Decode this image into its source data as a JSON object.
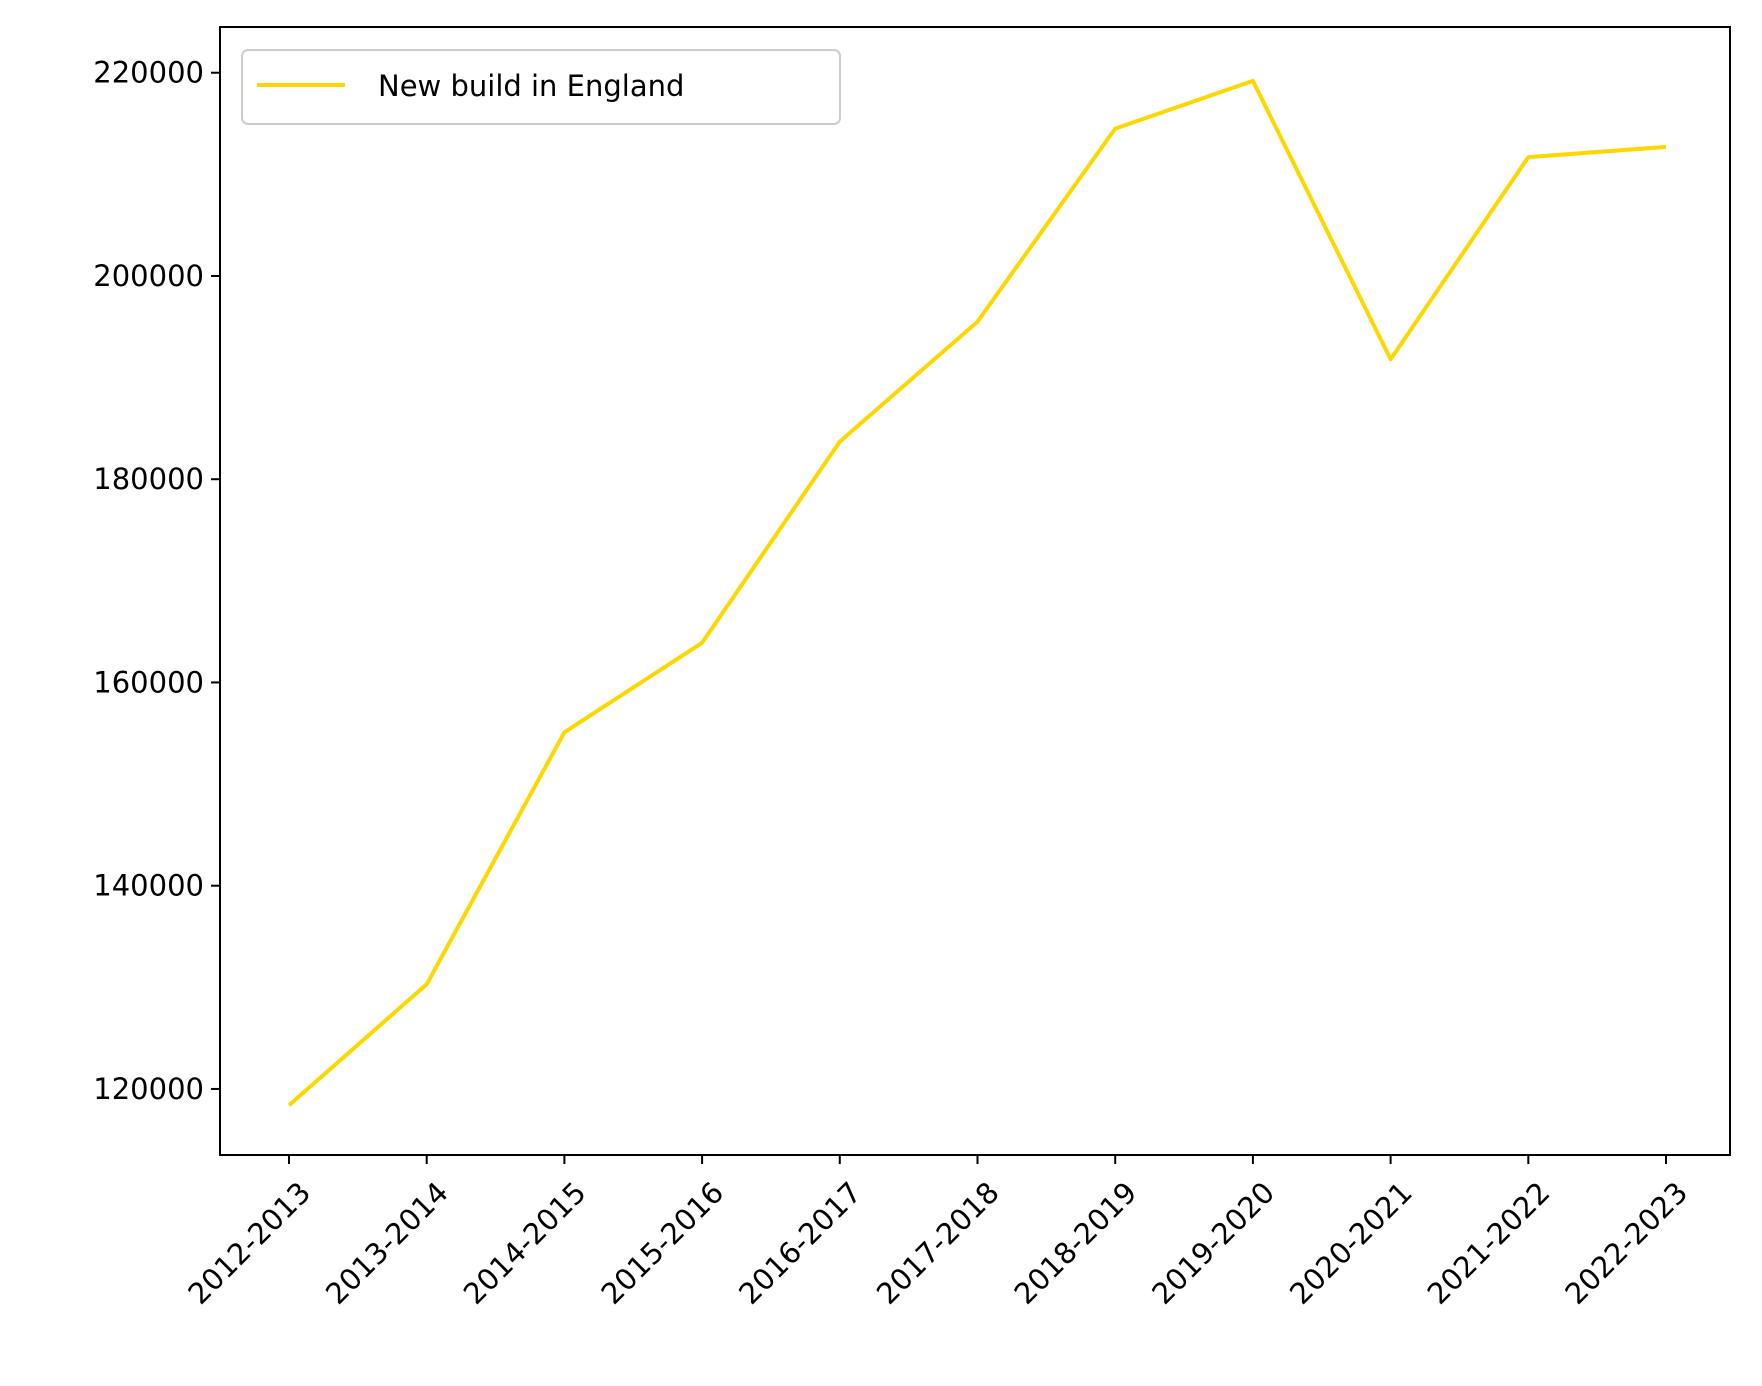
{
  "chart_data": {
    "type": "line",
    "title": "",
    "xlabel": "",
    "ylabel": "",
    "categories": [
      "2012-2013",
      "2013-2014",
      "2014-2015",
      "2015-2016",
      "2016-2017",
      "2017-2018",
      "2018-2019",
      "2019-2020",
      "2020-2021",
      "2021-2022",
      "2022-2023"
    ],
    "series": [
      {
        "name": "New build in England",
        "color": "#ffd700",
        "values": [
          118400,
          130300,
          155100,
          163900,
          183700,
          195500,
          214500,
          219200,
          191800,
          211700,
          212700
        ]
      }
    ],
    "y_ticks": [
      "120000",
      "140000",
      "160000",
      "180000",
      "200000",
      "220000"
    ],
    "ylim": [
      113500,
      224500
    ],
    "grid": false,
    "legend_position": "upper-left"
  }
}
